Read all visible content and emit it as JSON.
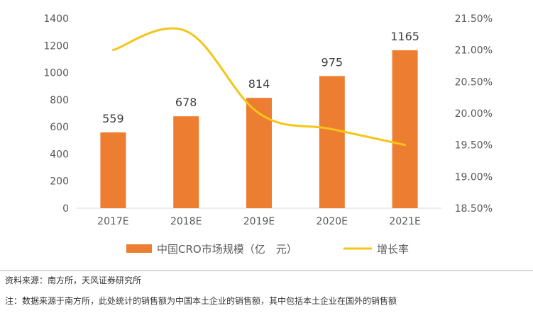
{
  "chart_data": {
    "type": "bar",
    "categories": [
      "2017E",
      "2018E",
      "2019E",
      "2020E",
      "2021E"
    ],
    "series": [
      {
        "name": "中国CRO市场规模（亿　元）",
        "type": "bar",
        "axis": "left",
        "values": [
          559,
          678,
          814,
          975,
          1165
        ],
        "color": "#ED7D31"
      },
      {
        "name": "增长率",
        "type": "line",
        "axis": "right",
        "values": [
          21.0,
          21.3,
          20.0,
          19.75,
          19.5
        ],
        "color": "#F5C518"
      }
    ],
    "y_left": {
      "min": 0,
      "max": 1400,
      "step": 200,
      "tick_labels": [
        "0",
        "200",
        "400",
        "600",
        "800",
        "1000",
        "1200",
        "1400"
      ]
    },
    "y_right": {
      "min": 18.5,
      "max": 21.5,
      "step": 0.5,
      "tick_labels": [
        "18.50%",
        "19.00%",
        "19.50%",
        "20.00%",
        "20.50%",
        "21.00%",
        "21.50%"
      ]
    },
    "data_labels": [
      "559",
      "678",
      "814",
      "975",
      "1165"
    ],
    "grid": false,
    "legend_position": "bottom"
  },
  "footer": {
    "source": "资料来源：南方所，天风证券研究所",
    "note": "注：数据来源于南方所，此处统计的销售额为中国本土企业的销售额，其中包括本土企业在国外的销售额"
  }
}
